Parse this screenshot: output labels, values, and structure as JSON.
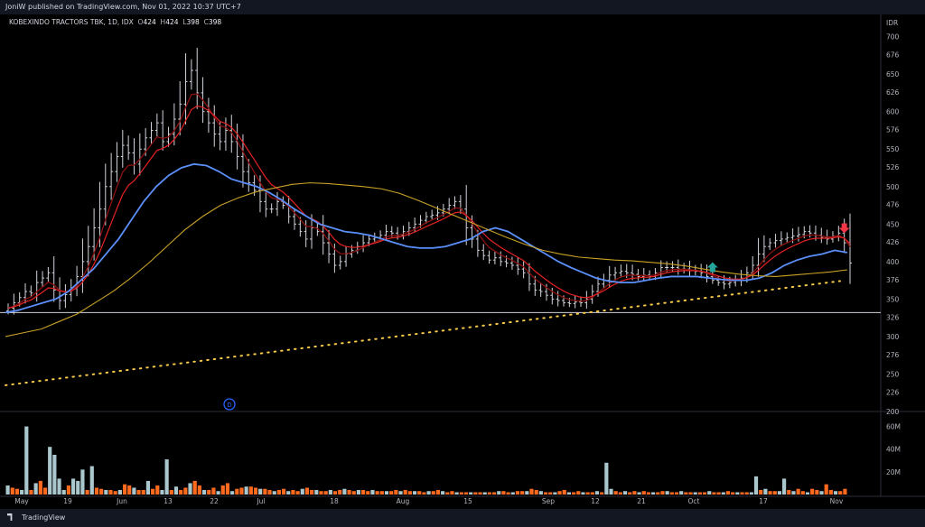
{
  "header": {
    "published": "JoniW published on TradingView.com, Nov 01, 2022 10:37 UTC+7"
  },
  "legend": {
    "symbol": "KOBEXINDO TRACTORS TBK, 1D, IDX",
    "o_label": "O",
    "o_value": "424",
    "h_label": "H",
    "h_value": "424",
    "l_label": "L",
    "l_value": "398",
    "c_label": "C",
    "c_value": "398"
  },
  "currency": "IDR",
  "footer": {
    "brand": "TradingView"
  },
  "event_marker": "D",
  "colors": {
    "background": "#000000",
    "candle": "#d1d4dc",
    "ema_fast": "#e62222",
    "ema_mid": "#8b1010",
    "ma_blue": "#5b8ff9",
    "ma_gold": "#c9a227",
    "trend_dots": "#f7c948",
    "support_line": "#d1d4dc",
    "vol_up": "#a9c7cc",
    "vol_down": "#ff6a1f",
    "arrow_up": "#26a69a",
    "arrow_down": "#f23645"
  },
  "chart_data": [
    {
      "type": "ohlc",
      "ylim": [
        200,
        720
      ],
      "y_ticks": [
        700,
        676,
        650,
        626,
        600,
        576,
        550,
        526,
        500,
        476,
        450,
        426,
        400,
        376,
        350,
        326,
        300,
        276,
        250,
        226,
        200
      ],
      "x_ticks": [
        "May",
        "19",
        "Jun",
        "13",
        "22",
        "Jul",
        "18",
        "Aug",
        "15",
        "Sep",
        "12",
        "21",
        "Oct",
        "17",
        "Nov"
      ],
      "support_level": 332,
      "close": [
        338,
        345,
        352,
        360,
        358,
        372,
        378,
        385,
        362,
        348,
        356,
        364,
        380,
        400,
        420,
        445,
        470,
        500,
        520,
        540,
        555,
        545,
        530,
        550,
        565,
        575,
        585,
        560,
        570,
        590,
        610,
        640,
        655,
        625,
        600,
        585,
        570,
        560,
        575,
        560,
        540,
        520,
        505,
        495,
        480,
        470,
        470,
        480,
        475,
        460,
        450,
        440,
        430,
        445,
        440,
        425,
        410,
        395,
        400,
        410,
        415,
        420,
        425,
        430,
        432,
        435,
        440,
        438,
        435,
        440,
        445,
        450,
        455,
        460,
        462,
        465,
        470,
        475,
        480,
        470,
        445,
        430,
        415,
        408,
        402,
        405,
        400,
        398,
        395,
        390,
        385,
        370,
        362,
        360,
        355,
        350,
        348,
        345,
        344,
        346,
        345,
        350,
        360,
        370,
        375,
        382,
        385,
        387,
        385,
        383,
        380,
        382,
        380,
        385,
        392,
        392,
        392,
        390,
        390,
        388,
        387,
        385,
        380,
        375,
        372,
        370,
        372,
        375,
        378,
        385,
        395,
        410,
        420,
        425,
        428,
        430,
        432,
        434,
        436,
        440,
        438,
        435,
        432,
        430,
        434,
        438,
        425,
        398
      ],
      "ma_blue": [
        332,
        335,
        340,
        345,
        350,
        360,
        375,
        390,
        410,
        430,
        455,
        480,
        500,
        515,
        525,
        530,
        528,
        520,
        510,
        505,
        500,
        492,
        482,
        470,
        460,
        450,
        445,
        440,
        438,
        435,
        430,
        425,
        420,
        418,
        418,
        420,
        425,
        430,
        440,
        445,
        440,
        430,
        420,
        410,
        400,
        392,
        385,
        378,
        374,
        372,
        372,
        375,
        378,
        380,
        380,
        380,
        378,
        376,
        375,
        375,
        378,
        385,
        395,
        402,
        407,
        410,
        415,
        412
      ],
      "ma_gold": [
        300,
        305,
        310,
        320,
        330,
        345,
        360,
        378,
        398,
        420,
        442,
        460,
        475,
        485,
        493,
        498,
        503,
        505,
        504,
        502,
        500,
        497,
        491,
        482,
        472,
        462,
        452,
        442,
        432,
        423,
        415,
        410,
        406,
        404,
        402,
        401,
        399,
        397,
        394,
        390,
        386,
        383,
        381,
        380,
        382,
        384,
        386,
        389
      ],
      "trend_dots": [
        235,
        374
      ],
      "annotations": {
        "up_arrow_price": 392,
        "down_arrow_price": 445
      }
    },
    {
      "type": "bar",
      "y_ticks_label": [
        "60M",
        "40M",
        "20M"
      ],
      "y_ticks_value": [
        60,
        40,
        20
      ],
      "ylim": [
        0,
        70
      ],
      "series": [
        {
          "name": "",
          "values": [
            8,
            6,
            5,
            4,
            60,
            4,
            10,
            12,
            6,
            42,
            35,
            14,
            4,
            8,
            14,
            12,
            22,
            4,
            25,
            6,
            5,
            4,
            4,
            3,
            4,
            9,
            8,
            6,
            4,
            4,
            12,
            5,
            8,
            4,
            31,
            4,
            7,
            4,
            6,
            10,
            12,
            8,
            4,
            4,
            6,
            3,
            8,
            10,
            3,
            5,
            6,
            7,
            7,
            6,
            5,
            5,
            4,
            3,
            4,
            5,
            3,
            4,
            3,
            5,
            6,
            4,
            4,
            3,
            3,
            4,
            3,
            4,
            5,
            4,
            3,
            4,
            4,
            3,
            4,
            3,
            3,
            3,
            3,
            4,
            3,
            4,
            3,
            3,
            3,
            2,
            3,
            3,
            4,
            3,
            2,
            3,
            2,
            2,
            2,
            2,
            2,
            2,
            2,
            2,
            2,
            3,
            3,
            2,
            2,
            3,
            3,
            3,
            5,
            4,
            3,
            2,
            2,
            2,
            3,
            4,
            2,
            2,
            3,
            2,
            2,
            2,
            3,
            2,
            28,
            5,
            3,
            2,
            3,
            2,
            3,
            2,
            3,
            2,
            2,
            2,
            3,
            3,
            2,
            2,
            3,
            2,
            2,
            2,
            2,
            2,
            3,
            2,
            2,
            2,
            3,
            2,
            2,
            2,
            2,
            2,
            16,
            4,
            5,
            3,
            3,
            3,
            14,
            4,
            3,
            5,
            3,
            2,
            5,
            4,
            3,
            9,
            4,
            3,
            3,
            5
          ]
        }
      ]
    }
  ]
}
